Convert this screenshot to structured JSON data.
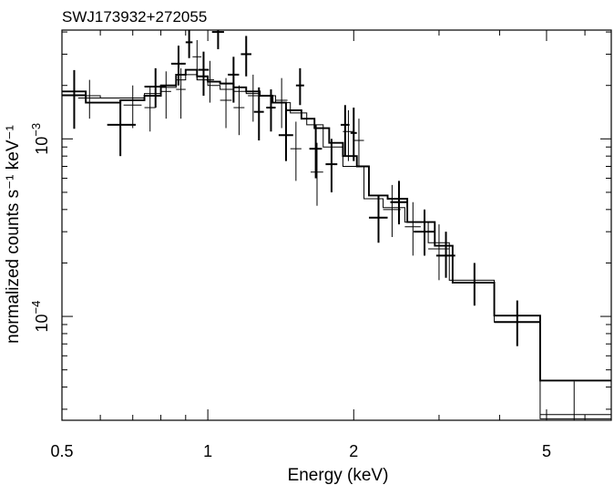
{
  "chart_data": {
    "type": "scatter",
    "title": "SWJ173932+272055",
    "xlabel": "Energy (keV)",
    "ylabel": "normalized counts s⁻¹ keV⁻¹",
    "xscale": "log",
    "yscale": "log",
    "xlim": [
      0.5,
      6.8
    ],
    "ylim": [
      2.6e-05,
      0.0041
    ],
    "x_ticks": [
      {
        "value": 0.5,
        "label": "0.5"
      },
      {
        "value": 1,
        "label": "1"
      },
      {
        "value": 2,
        "label": "2"
      },
      {
        "value": 5,
        "label": "5"
      }
    ],
    "y_ticks": [
      {
        "value": 0.0001,
        "base": "10",
        "exp": "−4"
      },
      {
        "value": 0.001,
        "base": "10",
        "exp": "−3"
      }
    ],
    "series": [
      {
        "style": "thick",
        "points": [
          {
            "x": 0.53,
            "xlo": 0.5,
            "xhi": 0.56,
            "y": 0.00176,
            "ylo": 0.00114,
            "yhi": 0.00244
          },
          {
            "x": 0.66,
            "xlo": 0.62,
            "xhi": 0.71,
            "y": 0.0012,
            "ylo": 0.0008,
            "yhi": 0.00165
          },
          {
            "x": 0.78,
            "xlo": 0.74,
            "xhi": 0.82,
            "y": 0.00197,
            "ylo": 0.0015,
            "yhi": 0.0025
          },
          {
            "x": 0.87,
            "xlo": 0.84,
            "xhi": 0.9,
            "y": 0.00265,
            "ylo": 0.002,
            "yhi": 0.00335
          },
          {
            "x": 0.915,
            "xlo": 0.9,
            "xhi": 0.93,
            "y": 0.0035,
            "ylo": 0.00285,
            "yhi": 0.0044
          },
          {
            "x": 0.98,
            "xlo": 0.955,
            "xhi": 1.005,
            "y": 0.00245,
            "ylo": 0.00175,
            "yhi": 0.0031
          },
          {
            "x": 1.05,
            "xlo": 1.02,
            "xhi": 1.08,
            "y": 0.004,
            "ylo": 0.0032,
            "yhi": 0.0048
          },
          {
            "x": 1.13,
            "xlo": 1.1,
            "xhi": 1.16,
            "y": 0.0023,
            "ylo": 0.0016,
            "yhi": 0.0029
          },
          {
            "x": 1.2,
            "xlo": 1.17,
            "xhi": 1.23,
            "y": 0.003,
            "ylo": 0.00225,
            "yhi": 0.0038
          },
          {
            "x": 1.275,
            "xlo": 1.245,
            "xhi": 1.305,
            "y": 0.00142,
            "ylo": 0.00098,
            "yhi": 0.00195
          },
          {
            "x": 1.35,
            "xlo": 1.32,
            "xhi": 1.38,
            "y": 0.0015,
            "ylo": 0.0011,
            "yhi": 0.0019
          },
          {
            "x": 1.45,
            "xlo": 1.4,
            "xhi": 1.5,
            "y": 0.00105,
            "ylo": 0.00075,
            "yhi": 0.0015
          },
          {
            "x": 1.55,
            "xlo": 1.52,
            "xhi": 1.58,
            "y": 0.002,
            "ylo": 0.00155,
            "yhi": 0.0025
          },
          {
            "x": 1.67,
            "xlo": 1.62,
            "xhi": 1.72,
            "y": 0.00088,
            "ylo": 0.0006,
            "yhi": 0.0012
          },
          {
            "x": 1.8,
            "xlo": 1.75,
            "xhi": 1.85,
            "y": 0.00072,
            "ylo": 0.0005,
            "yhi": 0.001
          },
          {
            "x": 1.92,
            "xlo": 1.88,
            "xhi": 1.96,
            "y": 0.0012,
            "ylo": 0.0008,
            "yhi": 0.00155
          },
          {
            "x": 2.0,
            "xlo": 1.97,
            "xhi": 2.03,
            "y": 0.00108,
            "ylo": 0.00075,
            "yhi": 0.0015
          },
          {
            "x": 2.25,
            "xlo": 2.15,
            "xhi": 2.35,
            "y": 0.00036,
            "ylo": 0.00026,
            "yhi": 0.00048
          },
          {
            "x": 2.48,
            "xlo": 2.38,
            "xhi": 2.58,
            "y": 0.00044,
            "ylo": 0.00033,
            "yhi": 0.00058
          },
          {
            "x": 2.8,
            "xlo": 2.66,
            "xhi": 2.94,
            "y": 0.0003,
            "ylo": 0.00022,
            "yhi": 0.0004
          },
          {
            "x": 3.1,
            "xlo": 2.96,
            "xhi": 3.24,
            "y": 0.00022,
            "ylo": 0.000165,
            "yhi": 0.0003
          },
          {
            "x": 3.55,
            "xlo": 3.2,
            "xhi": 3.9,
            "y": 0.000155,
            "ylo": 0.000115,
            "yhi": 0.0002
          },
          {
            "x": 4.35,
            "xlo": 3.9,
            "xhi": 4.85,
            "y": 9.3e-05,
            "ylo": 6.8e-05,
            "yhi": 0.000123
          }
        ]
      },
      {
        "style": "thin",
        "points": [
          {
            "x": 0.57,
            "xlo": 0.54,
            "xhi": 0.6,
            "y": 0.0017,
            "ylo": 0.0013,
            "yhi": 0.00215
          },
          {
            "x": 0.7,
            "xlo": 0.67,
            "xhi": 0.73,
            "y": 0.00155,
            "ylo": 0.00115,
            "yhi": 0.002
          },
          {
            "x": 0.76,
            "xlo": 0.74,
            "xhi": 0.78,
            "y": 0.0015,
            "ylo": 0.0011,
            "yhi": 0.00195
          },
          {
            "x": 0.82,
            "xlo": 0.8,
            "xhi": 0.84,
            "y": 0.00185,
            "ylo": 0.0013,
            "yhi": 0.0024
          },
          {
            "x": 0.88,
            "xlo": 0.86,
            "xhi": 0.9,
            "y": 0.0019,
            "ylo": 0.0013,
            "yhi": 0.0025
          },
          {
            "x": 0.95,
            "xlo": 0.93,
            "xhi": 0.97,
            "y": 0.0029,
            "ylo": 0.00215,
            "yhi": 0.0036
          },
          {
            "x": 1.01,
            "xlo": 0.99,
            "xhi": 1.03,
            "y": 0.00215,
            "ylo": 0.0016,
            "yhi": 0.00275
          },
          {
            "x": 1.09,
            "xlo": 1.06,
            "xhi": 1.12,
            "y": 0.00165,
            "ylo": 0.00115,
            "yhi": 0.0022
          },
          {
            "x": 1.16,
            "xlo": 1.13,
            "xhi": 1.19,
            "y": 0.0015,
            "ylo": 0.00105,
            "yhi": 0.002
          },
          {
            "x": 1.24,
            "xlo": 1.21,
            "xhi": 1.27,
            "y": 0.00175,
            "ylo": 0.00125,
            "yhi": 0.0023
          },
          {
            "x": 1.42,
            "xlo": 1.38,
            "xhi": 1.46,
            "y": 0.00165,
            "ylo": 0.00115,
            "yhi": 0.0022
          },
          {
            "x": 1.52,
            "xlo": 1.48,
            "xhi": 1.56,
            "y": 0.00088,
            "ylo": 0.00058,
            "yhi": 0.00125
          },
          {
            "x": 1.68,
            "xlo": 1.63,
            "xhi": 1.73,
            "y": 0.00065,
            "ylo": 0.00042,
            "yhi": 0.00095
          },
          {
            "x": 1.95,
            "xlo": 1.9,
            "xhi": 2.0,
            "y": 0.0011,
            "ylo": 0.00075,
            "yhi": 0.00145
          },
          {
            "x": 2.05,
            "xlo": 2.0,
            "xhi": 2.1,
            "y": 0.00098,
            "ylo": 0.0007,
            "yhi": 0.0013
          },
          {
            "x": 2.4,
            "xlo": 2.3,
            "xhi": 2.5,
            "y": 0.0004,
            "ylo": 0.00028,
            "yhi": 0.00055
          },
          {
            "x": 2.65,
            "xlo": 2.55,
            "xhi": 2.75,
            "y": 0.00032,
            "ylo": 0.00022,
            "yhi": 0.00044
          },
          {
            "x": 3.0,
            "xlo": 2.85,
            "xhi": 3.15,
            "y": 0.00024,
            "ylo": 0.00016,
            "yhi": 0.00033
          },
          {
            "x": 5.7,
            "xlo": 4.85,
            "xhi": 6.8,
            "y": 2.8e-05,
            "ylo": 1.5e-05,
            "yhi": 4.3e-05
          }
        ]
      }
    ],
    "models": [
      {
        "style": "thick",
        "steps": [
          [
            0.5,
            0.56,
            0.00185
          ],
          [
            0.56,
            0.66,
            0.0016
          ],
          [
            0.66,
            0.74,
            0.00165
          ],
          [
            0.74,
            0.8,
            0.00175
          ],
          [
            0.8,
            0.86,
            0.002
          ],
          [
            0.86,
            0.9,
            0.0023
          ],
          [
            0.9,
            0.95,
            0.00245
          ],
          [
            0.95,
            1.0,
            0.00225
          ],
          [
            1.0,
            1.06,
            0.0021
          ],
          [
            1.06,
            1.13,
            0.00205
          ],
          [
            1.13,
            1.2,
            0.00195
          ],
          [
            1.2,
            1.28,
            0.00185
          ],
          [
            1.28,
            1.36,
            0.00175
          ],
          [
            1.36,
            1.45,
            0.0016
          ],
          [
            1.45,
            1.56,
            0.00145
          ],
          [
            1.56,
            1.66,
            0.0013
          ],
          [
            1.66,
            1.78,
            0.00115
          ],
          [
            1.78,
            1.9,
            0.00095
          ],
          [
            1.9,
            2.03,
            0.0008
          ],
          [
            2.03,
            2.15,
            0.0007
          ],
          [
            2.15,
            2.35,
            0.00048
          ],
          [
            2.35,
            2.58,
            0.00046
          ],
          [
            2.58,
            2.94,
            0.00034
          ],
          [
            2.94,
            3.2,
            0.00025
          ],
          [
            3.2,
            3.9,
            0.000155
          ],
          [
            3.9,
            4.85,
            0.000101
          ],
          [
            4.85,
            6.8,
            4.35e-05
          ]
        ]
      },
      {
        "style": "thin",
        "steps": [
          [
            0.5,
            0.6,
            0.00175
          ],
          [
            0.6,
            0.67,
            0.0017
          ],
          [
            0.67,
            0.74,
            0.0017
          ],
          [
            0.74,
            0.8,
            0.0018
          ],
          [
            0.8,
            0.86,
            0.00195
          ],
          [
            0.86,
            0.9,
            0.00215
          ],
          [
            0.9,
            0.95,
            0.0023
          ],
          [
            0.95,
            1.0,
            0.00215
          ],
          [
            1.0,
            1.06,
            0.002
          ],
          [
            1.06,
            1.13,
            0.0019
          ],
          [
            1.13,
            1.2,
            0.00185
          ],
          [
            1.2,
            1.28,
            0.0018
          ],
          [
            1.28,
            1.38,
            0.00175
          ],
          [
            1.38,
            1.48,
            0.0016
          ],
          [
            1.48,
            1.6,
            0.0014
          ],
          [
            1.6,
            1.73,
            0.0012
          ],
          [
            1.73,
            1.9,
            0.0009
          ],
          [
            1.9,
            2.1,
            0.0007
          ],
          [
            2.1,
            2.3,
            0.00046
          ],
          [
            2.3,
            2.55,
            0.00041
          ],
          [
            2.55,
            2.85,
            0.00034
          ],
          [
            2.85,
            3.15,
            0.00026
          ],
          [
            3.15,
            3.9,
            0.00016
          ],
          [
            3.9,
            4.85,
            9.3e-05
          ],
          [
            4.85,
            6.8,
            2.65e-05
          ]
        ]
      }
    ]
  }
}
